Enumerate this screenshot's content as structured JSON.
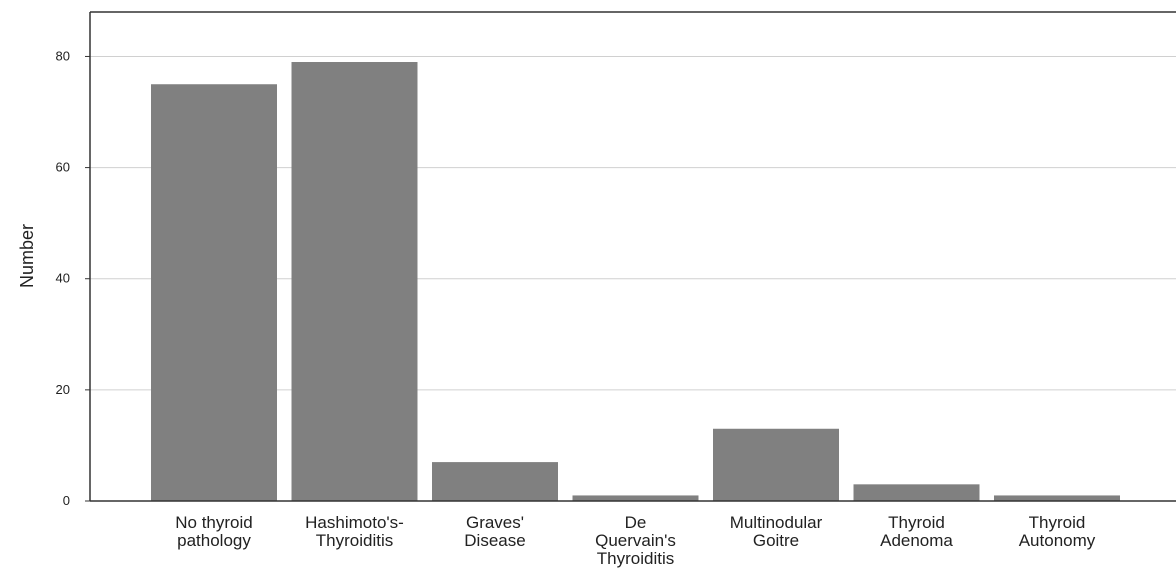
{
  "chart_data": {
    "type": "bar",
    "title": "",
    "xlabel": "",
    "ylabel": "Number",
    "ylim": [
      0,
      88
    ],
    "yticks": [
      0,
      20,
      40,
      60,
      80
    ],
    "grid": true,
    "categories": [
      [
        "No thyroid",
        "pathology"
      ],
      [
        "Hashimoto's-",
        "Thyroiditis"
      ],
      [
        "Graves'",
        "Disease"
      ],
      [
        "De",
        "Quervain's",
        "Thyroiditis"
      ],
      [
        "Multinodular",
        "Goitre"
      ],
      [
        "Thyroid",
        "Adenoma"
      ],
      [
        "Thyroid",
        "Autonomy"
      ]
    ],
    "values": [
      75,
      79,
      7,
      1,
      13,
      3,
      1
    ],
    "colors": {
      "bar": "#808080",
      "grid": "#d0d0d0",
      "axis": "#333333"
    }
  }
}
